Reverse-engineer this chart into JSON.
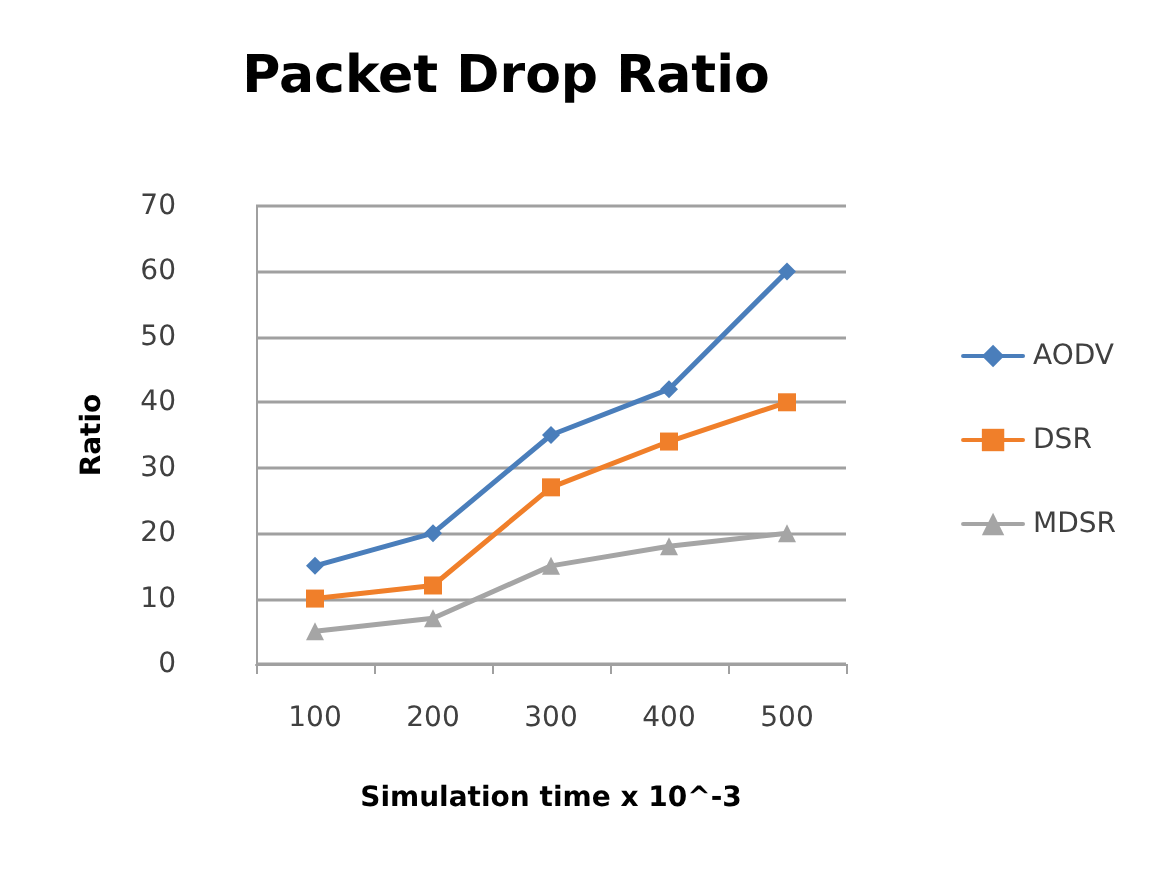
{
  "chart_data": {
    "type": "line",
    "title": "Packet Drop Ratio",
    "xlabel": "Simulation time x 10^-3",
    "ylabel": "Ratio",
    "categories": [
      "100",
      "200",
      "300",
      "400",
      "500"
    ],
    "series": [
      {
        "name": "AODV",
        "color": "#4a7ebb",
        "values": [
          15,
          20,
          35,
          42,
          60
        ],
        "marker": "diamond"
      },
      {
        "name": "DSR",
        "color": "#f07f2a",
        "values": [
          10,
          12,
          27,
          34,
          40
        ],
        "marker": "square"
      },
      {
        "name": "MDSR",
        "color": "#a5a5a5",
        "values": [
          5,
          7,
          15,
          18,
          20
        ],
        "marker": "triangle"
      }
    ],
    "ylim": [
      0,
      70
    ],
    "yticks": [
      0,
      10,
      20,
      30,
      40,
      50,
      60,
      70
    ],
    "grid": "y",
    "legend": "right",
    "line_style": "solid"
  }
}
